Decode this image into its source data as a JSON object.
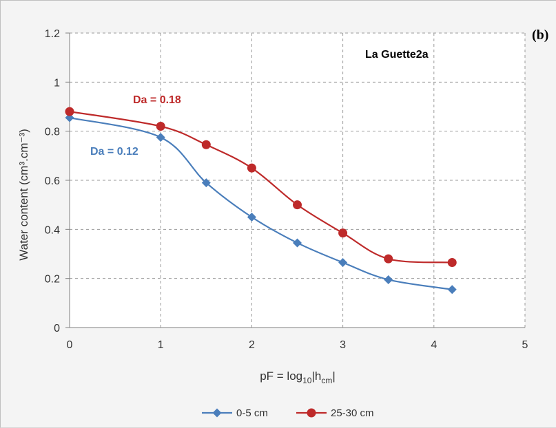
{
  "chart_data": {
    "type": "line",
    "panel_label": "(b)",
    "title": "La Guette2a",
    "xlabel": {
      "main": "pF = log",
      "sub": "10",
      "rest": "|h",
      "sub2": "cm",
      "end": "|"
    },
    "ylabel": "Water content (cm³.cm⁻³)",
    "xlim": [
      0,
      5
    ],
    "ylim": [
      0,
      1.2
    ],
    "x_ticks": [
      "0",
      "1",
      "2",
      "3",
      "4",
      "5"
    ],
    "y_ticks": [
      "0",
      "0.2",
      "0.4",
      "0.6",
      "0.8",
      "1",
      "1.2"
    ],
    "grid": true,
    "legend_position": "bottom",
    "series": [
      {
        "name": "0-5 cm",
        "color": "#4a7ebb",
        "marker": "diamond",
        "x": [
          0,
          1,
          1.5,
          2,
          2.5,
          3,
          3.5,
          4.2
        ],
        "y": [
          0.855,
          0.775,
          0.59,
          0.45,
          0.345,
          0.265,
          0.195,
          0.155
        ],
        "annotation": "Da = 0.12"
      },
      {
        "name": "25-30 cm",
        "color": "#be2a2a",
        "marker": "circle",
        "x": [
          0,
          1,
          1.5,
          2,
          2.5,
          3,
          3.5,
          4.2
        ],
        "y": [
          0.88,
          0.82,
          0.745,
          0.65,
          0.5,
          0.385,
          0.28,
          0.265
        ],
        "annotation": "Da = 0.18"
      }
    ]
  }
}
